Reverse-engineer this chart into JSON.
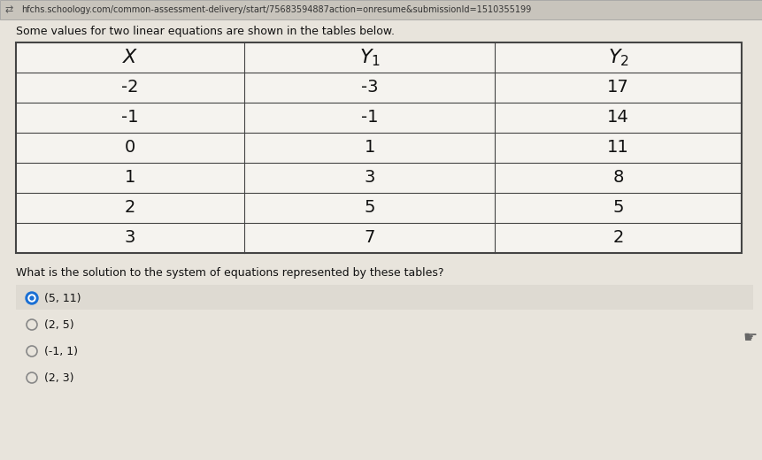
{
  "url_bar": "hfchs.schoology.com/common-assessment-delivery/start/75683594887action=onresume&submissionId=1510355199",
  "intro_text": "Some values for two linear equations are shown in the tables below.",
  "col_headers_math": [
    "$X$",
    "$Y_1$",
    "$Y_2$"
  ],
  "table_data": [
    [
      "-2",
      "-3",
      "17"
    ],
    [
      "-1",
      "-1",
      "14"
    ],
    [
      "0",
      "1",
      "11"
    ],
    [
      "1",
      "3",
      "8"
    ],
    [
      "2",
      "5",
      "5"
    ],
    [
      "3",
      "7",
      "2"
    ]
  ],
  "question_text": "What is the solution to the system of equations represented by these tables?",
  "choices": [
    "(5, 11)",
    "(2, 5)",
    "(-1, 1)",
    "(2, 3)"
  ],
  "selected_choice": 0,
  "bg_color": "#d8d4cc",
  "page_bg": "#e8e4dc",
  "table_bg": "#f5f3ef",
  "table_cell_bg": "#f0eeea",
  "border_color": "#444444",
  "text_color": "#111111",
  "answer_selected_bg": "#dedad2",
  "answer_bg": "#e8e4dc",
  "selected_dot_color": "#1a6fd4",
  "url_bar_bg": "#c8c4bc",
  "url_text_color": "#333333"
}
